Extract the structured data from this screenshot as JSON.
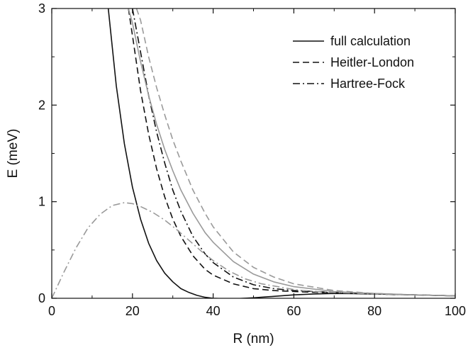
{
  "chart_data": {
    "type": "line",
    "xlabel": "R (nm)",
    "ylabel": "E (meV)",
    "xlim": [
      0,
      100
    ],
    "ylim": [
      0,
      3
    ],
    "xticks": [
      "0",
      "20",
      "40",
      "60",
      "80",
      "100"
    ],
    "yticks": [
      "0",
      "1",
      "2",
      "3"
    ],
    "grid": false,
    "legend_position": "top-right",
    "legend": [
      {
        "label": "full calculation",
        "style": "solid"
      },
      {
        "label": "Heitler-London",
        "style": "dashed"
      },
      {
        "label": "Hartree-Fock",
        "style": "dashdot"
      }
    ],
    "colors": {
      "black": "#111111",
      "gray": "#9a9a9a"
    },
    "series": [
      {
        "color": "black",
        "style": "solid",
        "x": [
          14,
          16,
          18,
          20,
          22,
          24,
          26,
          28,
          30,
          32,
          34,
          36,
          38,
          40,
          42,
          45,
          50,
          55,
          60,
          65,
          70,
          75,
          80,
          90,
          100
        ],
        "y": [
          3.0,
          2.2,
          1.6,
          1.15,
          0.82,
          0.57,
          0.39,
          0.26,
          0.17,
          0.1,
          0.06,
          0.03,
          0.01,
          0.0,
          -0.003,
          -0.006,
          0.005,
          0.02,
          0.035,
          0.045,
          0.05,
          0.048,
          0.044,
          0.035,
          0.025
        ]
      },
      {
        "color": "black",
        "style": "dashed",
        "x": [
          19,
          20,
          22,
          24,
          26,
          28,
          30,
          32,
          35,
          38,
          40,
          45,
          50,
          55,
          60,
          70,
          80,
          90,
          100
        ],
        "y": [
          3.0,
          2.72,
          2.15,
          1.7,
          1.34,
          1.05,
          0.82,
          0.64,
          0.44,
          0.3,
          0.24,
          0.15,
          0.1,
          0.08,
          0.07,
          0.055,
          0.045,
          0.035,
          0.025
        ]
      },
      {
        "color": "black",
        "style": "dashdot",
        "x": [
          20,
          22,
          24,
          26,
          28,
          30,
          32,
          35,
          38,
          40,
          45,
          50,
          55,
          60,
          70,
          80,
          90,
          100
        ],
        "y": [
          3.0,
          2.55,
          2.1,
          1.72,
          1.4,
          1.12,
          0.9,
          0.64,
          0.46,
          0.37,
          0.22,
          0.14,
          0.1,
          0.08,
          0.06,
          0.045,
          0.035,
          0.025
        ]
      },
      {
        "color": "gray",
        "style": "solid",
        "x": [
          19,
          20,
          22,
          24,
          26,
          28,
          30,
          32,
          35,
          38,
          40,
          45,
          50,
          55,
          60,
          70,
          80,
          90,
          100
        ],
        "y": [
          3.0,
          2.85,
          2.45,
          2.1,
          1.8,
          1.54,
          1.32,
          1.12,
          0.88,
          0.68,
          0.58,
          0.38,
          0.25,
          0.17,
          0.12,
          0.07,
          0.05,
          0.035,
          0.025
        ]
      },
      {
        "color": "gray",
        "style": "dashed",
        "x": [
          21,
          22,
          24,
          26,
          28,
          30,
          32,
          35,
          38,
          40,
          45,
          50,
          55,
          60,
          70,
          80,
          90,
          100
        ],
        "y": [
          3.0,
          2.88,
          2.5,
          2.18,
          1.9,
          1.64,
          1.42,
          1.12,
          0.88,
          0.74,
          0.48,
          0.32,
          0.22,
          0.15,
          0.08,
          0.05,
          0.035,
          0.025
        ]
      },
      {
        "color": "gray",
        "style": "dashdot",
        "x": [
          0,
          3,
          6,
          9,
          12,
          15,
          18,
          20,
          22,
          25,
          28,
          31,
          34,
          37,
          40,
          44,
          48,
          52,
          56,
          60,
          65,
          70,
          80,
          90,
          100
        ],
        "y": [
          0.0,
          0.27,
          0.52,
          0.73,
          0.87,
          0.96,
          0.99,
          0.98,
          0.95,
          0.89,
          0.81,
          0.71,
          0.6,
          0.49,
          0.39,
          0.28,
          0.2,
          0.15,
          0.12,
          0.09,
          0.07,
          0.06,
          0.045,
          0.035,
          0.025
        ]
      }
    ]
  }
}
